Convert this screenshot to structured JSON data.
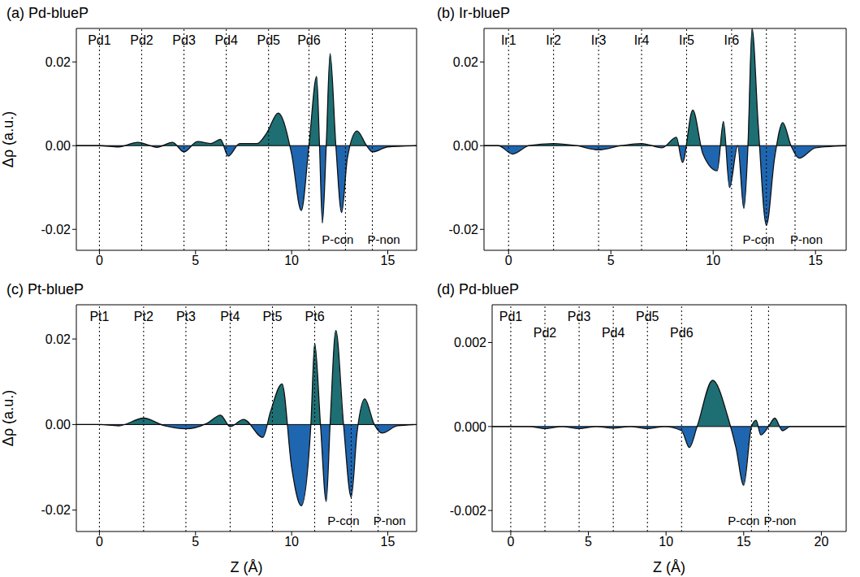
{
  "chart_data": [
    {
      "type": "area",
      "title": "(a) Pd-blueP",
      "ylabel": "Δρ (a.u.)",
      "x": [
        -1.2,
        0,
        1,
        2,
        3,
        3.8,
        4.4,
        5.1,
        5.8,
        6.3,
        6.7,
        7.3,
        8.2,
        8.7,
        9.3,
        10.0,
        10.5,
        10.9,
        11.3,
        11.45,
        11.6,
        11.8,
        12.0,
        12.3,
        12.6,
        12.9,
        13.4,
        13.9,
        14.2,
        15,
        16.5
      ],
      "values": [
        0,
        0,
        -0.0003,
        0.0008,
        -0.0004,
        0.0008,
        -0.0015,
        0.001,
        0.0005,
        0.0015,
        -0.0025,
        0.0005,
        0.0005,
        0.003,
        0.0078,
        -0.002,
        -0.0155,
        0,
        0.0165,
        0,
        -0.0185,
        0,
        0.022,
        0,
        -0.016,
        -0.003,
        0.0035,
        0,
        -0.0015,
        -0.0003,
        0
      ],
      "colors": [
        "#1e6f74",
        "#1f66b0"
      ],
      "xlim": [
        -1.2,
        16.5
      ],
      "xticks": [
        0,
        5,
        10,
        15
      ],
      "ylim": [
        -0.025,
        0.028
      ],
      "yticks": [
        {
          "value": -0.02,
          "label": "-0.02"
        },
        {
          "value": 0,
          "label": "0.00"
        },
        {
          "value": 0.02,
          "label": "0.02"
        }
      ],
      "metal_layers": [
        {
          "x": 0,
          "label": "Pd1"
        },
        {
          "x": 2.2,
          "label": "Pd2"
        },
        {
          "x": 4.4,
          "label": "Pd3"
        },
        {
          "x": 6.6,
          "label": "Pd4"
        },
        {
          "x": 8.8,
          "label": "Pd5"
        },
        {
          "x": 10.9,
          "label": "Pd6"
        }
      ],
      "p_layers": [
        {
          "x": 12.8,
          "label": "P-con"
        },
        {
          "x": 14.2,
          "label": "P-non"
        }
      ]
    },
    {
      "type": "area",
      "title": "(b) Ir-blueP",
      "x": [
        -1.2,
        -0.5,
        0.2,
        1,
        2.2,
        3.3,
        4.4,
        5.5,
        6.5,
        7.5,
        8.2,
        8.5,
        9.0,
        9.5,
        10.2,
        10.5,
        10.8,
        11.2,
        11.5,
        11.7,
        11.9,
        12.2,
        12.6,
        13.0,
        13.4,
        13.8,
        14.2,
        15,
        16.5
      ],
      "values": [
        0,
        0,
        -0.002,
        0,
        0.0005,
        0,
        -0.001,
        0,
        0.0005,
        -0.0005,
        0.002,
        -0.004,
        0.0085,
        -0.002,
        -0.006,
        0.0058,
        -0.01,
        0,
        -0.015,
        0,
        0.028,
        0.005,
        -0.019,
        -0.003,
        0.0055,
        0,
        -0.003,
        -0.0005,
        0
      ],
      "colors": [
        "#1e6f74",
        "#1f66b0"
      ],
      "xlim": [
        -1.2,
        16.5
      ],
      "xticks": [
        0,
        5,
        10,
        15
      ],
      "ylim": [
        -0.025,
        0.028
      ],
      "yticks": [
        {
          "value": -0.02,
          "label": "-0.02"
        },
        {
          "value": 0,
          "label": "0.00"
        },
        {
          "value": 0.02,
          "label": "0.02"
        }
      ],
      "metal_layers": [
        {
          "x": 0,
          "label": "Ir1"
        },
        {
          "x": 2.2,
          "label": "Ir2"
        },
        {
          "x": 4.4,
          "label": "Ir3"
        },
        {
          "x": 6.5,
          "label": "Ir4"
        },
        {
          "x": 8.7,
          "label": "Ir5"
        },
        {
          "x": 10.9,
          "label": "Ir6"
        }
      ],
      "p_layers": [
        {
          "x": 12.6,
          "label": "P-con"
        },
        {
          "x": 14.0,
          "label": "P-non"
        }
      ]
    },
    {
      "type": "area",
      "title": "(c) Pt-blueP",
      "ylabel": "Δρ (a.u.)",
      "xlabel": "Z (Å)",
      "x": [
        -1.2,
        0,
        1,
        2.3,
        3.4,
        4.5,
        5.6,
        6.3,
        6.8,
        7.5,
        8.5,
        8.9,
        9.5,
        10.0,
        10.5,
        11.0,
        11.2,
        11.5,
        11.8,
        12.0,
        12.3,
        12.7,
        13.1,
        13.4,
        13.8,
        14.3,
        14.7,
        15.5,
        16.5
      ],
      "values": [
        0,
        0,
        -0.0003,
        0.0015,
        -0.0003,
        -0.001,
        0.0003,
        0.0022,
        -0.0005,
        0.0012,
        -0.003,
        0.003,
        0.0095,
        -0.01,
        -0.019,
        0,
        0.019,
        0,
        -0.018,
        0,
        0.022,
        0,
        -0.017,
        -0.002,
        0.006,
        0,
        -0.002,
        -0.0003,
        0
      ],
      "colors": [
        "#1e6f74",
        "#1f66b0"
      ],
      "xlim": [
        -1.2,
        16.5
      ],
      "xticks": [
        0,
        5,
        10,
        15
      ],
      "ylim": [
        -0.025,
        0.028
      ],
      "yticks": [
        {
          "value": -0.02,
          "label": "-0.02"
        },
        {
          "value": 0,
          "label": "0.00"
        },
        {
          "value": 0.02,
          "label": "0.02"
        }
      ],
      "metal_layers": [
        {
          "x": 0,
          "label": "Pt1"
        },
        {
          "x": 2.3,
          "label": "Pt2"
        },
        {
          "x": 4.5,
          "label": "Pt3"
        },
        {
          "x": 6.8,
          "label": "Pt4"
        },
        {
          "x": 9.0,
          "label": "Pt5"
        },
        {
          "x": 11.2,
          "label": "Pt6"
        }
      ],
      "p_layers": [
        {
          "x": 13.1,
          "label": "P-con"
        },
        {
          "x": 14.5,
          "label": "P-non"
        }
      ]
    },
    {
      "type": "area",
      "title": "(d) Pd-blueP",
      "xlabel": "Z (Å)",
      "x": [
        -1.2,
        0,
        1.2,
        2.2,
        3.3,
        4.4,
        5.5,
        6.6,
        7.7,
        8.8,
        9.9,
        11.0,
        11.5,
        12.0,
        13.0,
        14.0,
        14.5,
        15.0,
        15.5,
        15.8,
        16.1,
        16.6,
        17.0,
        17.5,
        18.0,
        19.5,
        21.5
      ],
      "values": [
        0,
        0,
        0,
        -5e-05,
        0,
        -5e-05,
        0,
        -4e-05,
        0,
        -5e-05,
        0,
        -0.0001,
        -0.0005,
        0,
        0.0011,
        0.0002,
        -0.0005,
        -0.0014,
        0,
        0.00015,
        -0.0002,
        0,
        0.0002,
        -0.0001,
        0,
        0,
        0
      ],
      "colors": [
        "#1e6f74",
        "#1f66b0"
      ],
      "xlim": [
        -1.2,
        21.6
      ],
      "xticks": [
        0,
        5,
        10,
        15,
        20
      ],
      "ylim": [
        -0.0025,
        0.0029
      ],
      "yticks": [
        {
          "value": -0.002,
          "label": "-0.002"
        },
        {
          "value": 0,
          "label": "0.000"
        },
        {
          "value": 0.002,
          "label": "0.002"
        }
      ],
      "metal_layers": [
        {
          "x": 0,
          "label": "Pd1"
        },
        {
          "x": 2.2,
          "label": "Pd2"
        },
        {
          "x": 4.4,
          "label": "Pd3"
        },
        {
          "x": 6.6,
          "label": "Pd4"
        },
        {
          "x": 8.8,
          "label": "Pd5"
        },
        {
          "x": 11.0,
          "label": "Pd6"
        }
      ],
      "p_layers": [
        {
          "x": 15.5,
          "label": "P-con"
        },
        {
          "x": 16.6,
          "label": "P-non"
        }
      ]
    }
  ]
}
